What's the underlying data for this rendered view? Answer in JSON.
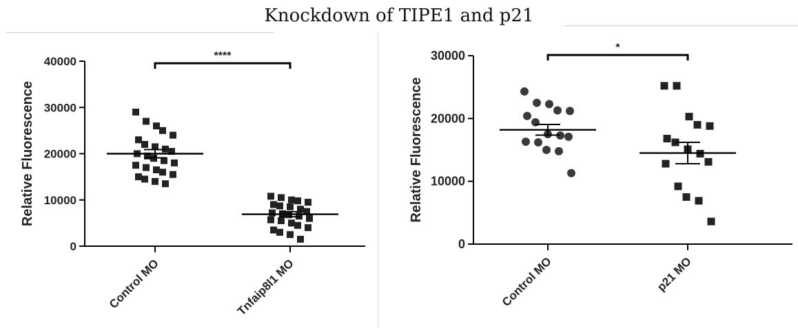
{
  "title": "Knockdown of TIPE1 and p21",
  "chart_data": [
    {
      "type": "scatter",
      "ylabel": "Relative Fluorescence",
      "ylim": [
        0,
        40000
      ],
      "yticks": [
        0,
        10000,
        20000,
        30000,
        40000
      ],
      "categories": [
        "Control MO",
        "Tnfaip8l1 MO"
      ],
      "marker": "square",
      "significance": "****",
      "series": [
        {
          "values": [
            29000,
            27000,
            26000,
            25000,
            24000,
            23000,
            22000,
            21500,
            21000,
            20500,
            20000,
            19500,
            19000,
            18500,
            18000,
            17500,
            17000,
            16500,
            16000,
            15500,
            15000,
            14500,
            14000,
            13500
          ],
          "mean": 20000,
          "sem": 900
        },
        {
          "values": [
            10800,
            10500,
            10000,
            9800,
            9500,
            9000,
            8700,
            8500,
            8000,
            7500,
            7200,
            7000,
            6800,
            6500,
            6000,
            5700,
            5500,
            5000,
            4500,
            4000,
            3500,
            3000,
            2500,
            1500
          ],
          "mean": 6900,
          "sem": 550
        }
      ]
    },
    {
      "type": "scatter",
      "ylabel": "Relative Fluorescence",
      "ylim": [
        0,
        30000
      ],
      "yticks": [
        0,
        10000,
        20000,
        30000
      ],
      "categories": [
        "Control MO",
        "p21 MO"
      ],
      "marker_by_category": [
        "circle",
        "square"
      ],
      "significance": "*",
      "series": [
        {
          "values": [
            24300,
            22500,
            22300,
            21300,
            21200,
            20400,
            19400,
            17500,
            17300,
            17100,
            16300,
            16200,
            15000,
            14800,
            11300
          ],
          "mean": 18200,
          "sem": 850
        },
        {
          "values": [
            25200,
            25200,
            20300,
            19000,
            18800,
            16800,
            16200,
            15100,
            14400,
            13100,
            12800,
            9200,
            7500,
            6900,
            3600
          ],
          "mean": 14500,
          "sem": 1700
        }
      ]
    }
  ]
}
